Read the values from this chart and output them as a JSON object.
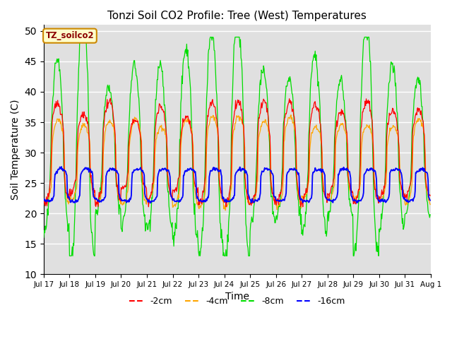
{
  "title": "Tonzi Soil CO2 Profile: Tree (West) Temperatures",
  "xlabel": "Time",
  "ylabel": "Soil Temperature (C)",
  "ylim": [
    10,
    51
  ],
  "yticks": [
    10,
    15,
    20,
    25,
    30,
    35,
    40,
    45,
    50
  ],
  "legend_label": "TZ_soilco2",
  "series_labels": [
    "-2cm",
    "-4cm",
    "-8cm",
    "-16cm"
  ],
  "series_colors": [
    "#ff0000",
    "#ffa500",
    "#00dd00",
    "#0000ff"
  ],
  "background_color": "#e0e0e0",
  "n_days": 15,
  "start_day": 17,
  "samples_per_day": 48,
  "figsize": [
    6.4,
    4.8
  ],
  "dpi": 100
}
